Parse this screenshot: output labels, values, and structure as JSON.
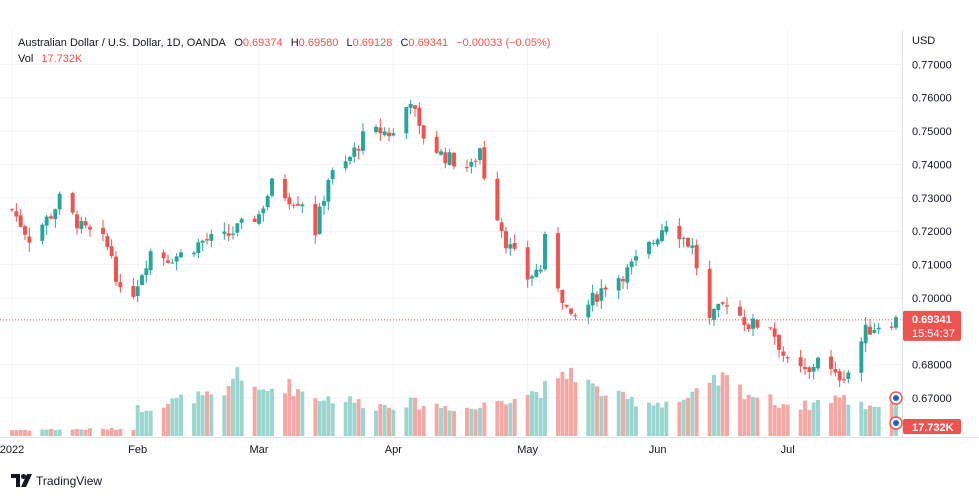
{
  "header": {
    "symbol": "Australian Dollar / U.S. Dollar, 1D, OANDA",
    "o_label": "O",
    "o_value": "0.69374",
    "h_label": "H",
    "h_value": "0.69580",
    "l_label": "L",
    "l_value": "0.69128",
    "c_label": "C",
    "c_value": "0.69341",
    "change": "−0.00033 (−0.05%)",
    "vol_label": "Vol",
    "vol_value": "17.732K"
  },
  "price_axis": {
    "currency": "USD",
    "ticks": [
      "0.77000",
      "0.76000",
      "0.75000",
      "0.74000",
      "0.73000",
      "0.72000",
      "0.71000",
      "0.70000",
      "0.68000",
      "0.67000"
    ]
  },
  "time_axis": {
    "ticks": [
      "2022",
      "Feb",
      "Mar",
      "Apr",
      "May",
      "Jun",
      "Jul"
    ]
  },
  "price_badge": {
    "price": "0.69341",
    "countdown": "15:54:37"
  },
  "volume_badge": {
    "value": "17.732K"
  },
  "brand": {
    "name": "TradingView"
  },
  "colors": {
    "up": "#26a69a",
    "down": "#ef5350",
    "up_volume": "#9ad5ce",
    "down_volume": "#f4a8a5",
    "grid": "#f0f3fa",
    "text": "#131722"
  },
  "chart_data": {
    "type": "candlestick",
    "title": "Australian Dollar / U.S. Dollar, 1D, OANDA",
    "xlabel": "",
    "ylabel": "USD",
    "ylim": [
      0.6625,
      0.7725
    ],
    "grid": true,
    "x_range": [
      "2022-01-03",
      "2022-07-26"
    ],
    "x_ticks": [
      "2022-01-03",
      "2022-02-01",
      "2022-03-01",
      "2022-04-01",
      "2022-05-02",
      "2022-06-01",
      "2022-07-01"
    ],
    "last_price": 0.69341,
    "series": [
      {
        "name": "candles",
        "anchors": [
          [
            "2022-01-03",
            0.7265
          ],
          [
            "2022-01-07",
            0.718
          ],
          [
            "2022-01-12",
            0.725
          ],
          [
            "2022-01-14",
            0.7295
          ],
          [
            "2022-01-19",
            0.721
          ],
          [
            "2022-01-24",
            0.717
          ],
          [
            "2022-01-26",
            0.713
          ],
          [
            "2022-01-28",
            0.701
          ],
          [
            "2022-01-31",
            0.702
          ],
          [
            "2022-02-04",
            0.714
          ],
          [
            "2022-02-08",
            0.712
          ],
          [
            "2022-02-11",
            0.713
          ],
          [
            "2022-02-16",
            0.717
          ],
          [
            "2022-02-21",
            0.718
          ],
          [
            "2022-02-25",
            0.7215
          ],
          [
            "2022-03-01",
            0.725
          ],
          [
            "2022-03-04",
            0.734
          ],
          [
            "2022-03-08",
            0.73
          ],
          [
            "2022-03-11",
            0.729
          ],
          [
            "2022-03-14",
            0.72
          ],
          [
            "2022-03-17",
            0.736
          ],
          [
            "2022-03-21",
            0.74
          ],
          [
            "2022-03-25",
            0.748
          ],
          [
            "2022-03-29",
            0.75
          ],
          [
            "2022-04-01",
            0.749
          ],
          [
            "2022-04-05",
            0.76
          ],
          [
            "2022-04-07",
            0.75
          ],
          [
            "2022-04-12",
            0.743
          ],
          [
            "2022-04-15",
            0.741
          ],
          [
            "2022-04-19",
            0.739
          ],
          [
            "2022-04-21",
            0.745
          ],
          [
            "2022-04-22",
            0.737
          ],
          [
            "2022-04-27",
            0.717
          ],
          [
            "2022-05-02",
            0.706
          ],
          [
            "2022-05-05",
            0.709
          ],
          [
            "2022-05-06",
            0.717
          ],
          [
            "2022-05-09",
            0.704
          ],
          [
            "2022-05-12",
            0.693
          ],
          [
            "2022-05-16",
            0.698
          ],
          [
            "2022-05-20",
            0.704
          ],
          [
            "2022-05-25",
            0.708
          ],
          [
            "2022-05-31",
            0.717
          ],
          [
            "2022-06-03",
            0.723
          ],
          [
            "2022-06-06",
            0.7195
          ],
          [
            "2022-06-09",
            0.715
          ],
          [
            "2022-06-13",
            0.693
          ],
          [
            "2022-06-17",
            0.699
          ],
          [
            "2022-06-22",
            0.692
          ],
          [
            "2022-06-27",
            0.692
          ],
          [
            "2022-07-01",
            0.68
          ],
          [
            "2022-07-06",
            0.677
          ],
          [
            "2022-07-08",
            0.683
          ],
          [
            "2022-07-12",
            0.676
          ],
          [
            "2022-07-15",
            0.678
          ],
          [
            "2022-07-19",
            0.69
          ],
          [
            "2022-07-22",
            0.692
          ],
          [
            "2022-07-26",
            0.6934
          ]
        ]
      },
      {
        "name": "volume",
        "ylim": [
          0,
          35
        ],
        "anchors": [
          [
            "2022-01-03",
            2
          ],
          [
            "2022-01-31",
            2.4
          ],
          [
            "2022-02-01",
            9
          ],
          [
            "2022-02-08",
            11
          ],
          [
            "2022-02-14",
            13
          ],
          [
            "2022-02-21",
            12
          ],
          [
            "2022-02-24",
            23
          ],
          [
            "2022-02-28",
            14
          ],
          [
            "2022-03-07",
            17
          ],
          [
            "2022-03-14",
            13
          ],
          [
            "2022-03-21",
            12
          ],
          [
            "2022-03-28",
            10
          ],
          [
            "2022-04-04",
            11
          ],
          [
            "2022-04-11",
            10
          ],
          [
            "2022-04-20",
            9
          ],
          [
            "2022-04-25",
            12
          ],
          [
            "2022-05-02",
            14
          ],
          [
            "2022-05-09",
            17
          ],
          [
            "2022-05-12",
            22
          ],
          [
            "2022-05-18",
            15
          ],
          [
            "2022-05-25",
            12
          ],
          [
            "2022-06-01",
            11
          ],
          [
            "2022-06-08",
            12
          ],
          [
            "2022-06-16",
            19
          ],
          [
            "2022-06-22",
            14
          ],
          [
            "2022-06-29",
            11
          ],
          [
            "2022-07-05",
            10
          ],
          [
            "2022-07-12",
            13
          ],
          [
            "2022-07-19",
            10
          ],
          [
            "2022-07-26",
            11
          ]
        ]
      }
    ]
  }
}
